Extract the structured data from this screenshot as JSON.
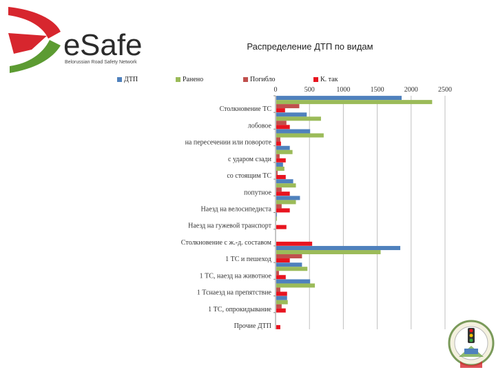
{
  "logo": {
    "brand_e": "e",
    "brand_rest": "Safe",
    "tagline": "Belorussian Road Safety Network"
  },
  "emblem": {
    "name": "traffic-police-emblem-icon"
  },
  "colors": {
    "blue": "#4f81bd",
    "green": "#9bbb59",
    "red": "#c0504d",
    "bright_red": "#e8141f",
    "logo_red": "#d7262e",
    "logo_green": "#5c9b32",
    "logo_text": "#2b2b2b"
  },
  "chart_data": {
    "type": "bar",
    "orientation": "horizontal",
    "title": "Распределение ДТП по видам",
    "legend_position": "top",
    "xlim": [
      0,
      2500
    ],
    "x_ticks": [
      0,
      500,
      1000,
      1500,
      2000,
      2500
    ],
    "grid": true,
    "categories": [
      "Столкновение ТС",
      "лобовое",
      "на пересечении или повороте",
      "с ударом сзади",
      "со стоящим ТС",
      "попутное",
      "Наезд на велосипедиста",
      "Наезд на гужевой транспорт",
      "Столкновение с ж.-д. составом",
      "1 ТС и пешеход",
      "1 ТС, наезд на животное",
      "1 Тснаезд на препятствие",
      "1 ТС, опрокидывание",
      "Прочие ДТП"
    ],
    "series": [
      {
        "name": "ДТП",
        "color": "#4f81bd",
        "values": [
          1850,
          450,
          500,
          200,
          100,
          250,
          350,
          10,
          0,
          1830,
          380,
          500,
          160,
          0
        ]
      },
      {
        "name": "Ранено",
        "color": "#9bbb59",
        "values": [
          2300,
          660,
          700,
          240,
          120,
          290,
          290,
          10,
          0,
          1540,
          460,
          570,
          170,
          0
        ]
      },
      {
        "name": "Погибло",
        "color": "#c0504d",
        "values": [
          340,
          150,
          60,
          50,
          20,
          80,
          80,
          0,
          0,
          380,
          40,
          60,
          80,
          0
        ]
      },
      {
        "name": "К. так",
        "color": "#e8141f",
        "values": [
          130,
          200,
          70,
          140,
          140,
          200,
          200,
          150,
          530,
          200,
          140,
          160,
          140,
          60
        ]
      }
    ]
  }
}
